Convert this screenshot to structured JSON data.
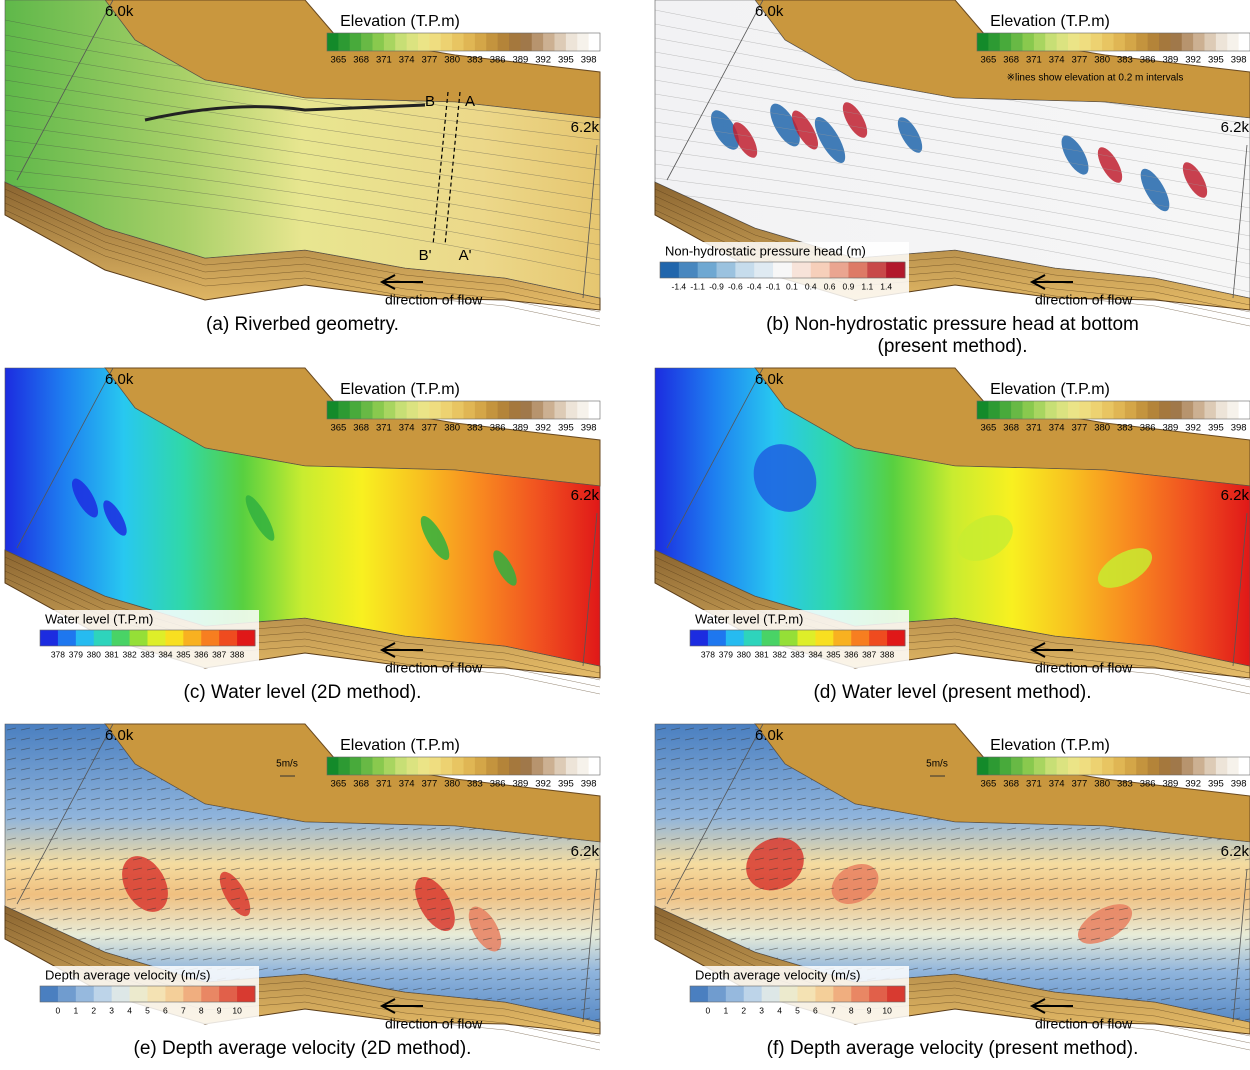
{
  "panels": [
    {
      "caption": [
        "(a) Riverbed geometry."
      ],
      "km_start": "6.0k",
      "km_end": "6.2k",
      "elevation_legend": {
        "title": "Elevation (T.P.m)",
        "ticks": [
          365,
          368,
          371,
          374,
          377,
          380,
          383,
          386,
          389,
          392,
          395,
          398
        ]
      },
      "section_labels": [
        "B",
        "A",
        "B'",
        "A'"
      ],
      "flow_label": "direction of flow"
    },
    {
      "caption": [
        "(b) Non-hydrostatic pressure head at bottom",
        "(present method)."
      ],
      "km_start": "6.0k",
      "km_end": "6.2k",
      "elevation_legend": {
        "title": "Elevation (T.P.m)",
        "ticks": [
          365,
          368,
          371,
          374,
          377,
          380,
          383,
          386,
          389,
          392,
          395,
          398
        ]
      },
      "note": "※lines show elevation at 0.2 m intervals",
      "legend": {
        "title": "Non-hydrostatic pressure head (m)",
        "ticks": [
          -1.4,
          -1.1,
          -0.9,
          -0.6,
          -0.4,
          -0.1,
          0.1,
          0.4,
          0.6,
          0.9,
          1.1,
          1.4
        ]
      },
      "flow_label": "direction of flow"
    },
    {
      "caption": [
        "(c) Water level (2D method)."
      ],
      "km_start": "6.0k",
      "km_end": "6.2k",
      "elevation_legend": {
        "title": "Elevation (T.P.m)",
        "ticks": [
          365,
          368,
          371,
          374,
          377,
          380,
          383,
          386,
          389,
          392,
          395,
          398
        ]
      },
      "legend": {
        "title": "Water level (T.P.m)",
        "ticks": [
          378,
          379,
          380,
          381,
          382,
          383,
          384,
          385,
          386,
          387,
          388
        ]
      },
      "flow_label": "direction of flow"
    },
    {
      "caption": [
        "(d) Water level (present method)."
      ],
      "km_start": "6.0k",
      "km_end": "6.2k",
      "elevation_legend": {
        "title": "Elevation (T.P.m)",
        "ticks": [
          365,
          368,
          371,
          374,
          377,
          380,
          383,
          386,
          389,
          392,
          395,
          398
        ]
      },
      "legend": {
        "title": "Water level (T.P.m)",
        "ticks": [
          378,
          379,
          380,
          381,
          382,
          383,
          384,
          385,
          386,
          387,
          388
        ]
      },
      "flow_label": "direction of flow"
    },
    {
      "caption": [
        "(e) Depth average velocity (2D method)."
      ],
      "km_start": "6.0k",
      "km_end": "6.2k",
      "elevation_legend": {
        "title": "Elevation (T.P.m)",
        "ticks": [
          365,
          368,
          371,
          374,
          377,
          380,
          383,
          386,
          389,
          392,
          395,
          398
        ]
      },
      "scale_label": "5m/s",
      "legend": {
        "title": "Depth average velocity (m/s)",
        "ticks": [
          0,
          1,
          2,
          3,
          4,
          5,
          6,
          7,
          8,
          9,
          10
        ]
      },
      "flow_label": "direction of flow"
    },
    {
      "caption": [
        "(f) Depth average velocity (present method)."
      ],
      "km_start": "6.0k",
      "km_end": "6.2k",
      "elevation_legend": {
        "title": "Elevation (T.P.m)",
        "ticks": [
          365,
          368,
          371,
          374,
          377,
          380,
          383,
          386,
          389,
          392,
          395,
          398
        ]
      },
      "scale_label": "5m/s",
      "legend": {
        "title": "Depth average velocity (m/s)",
        "ticks": [
          0,
          1,
          2,
          3,
          4,
          5,
          6,
          7,
          8,
          9,
          10
        ]
      },
      "flow_label": "direction of flow"
    }
  ]
}
